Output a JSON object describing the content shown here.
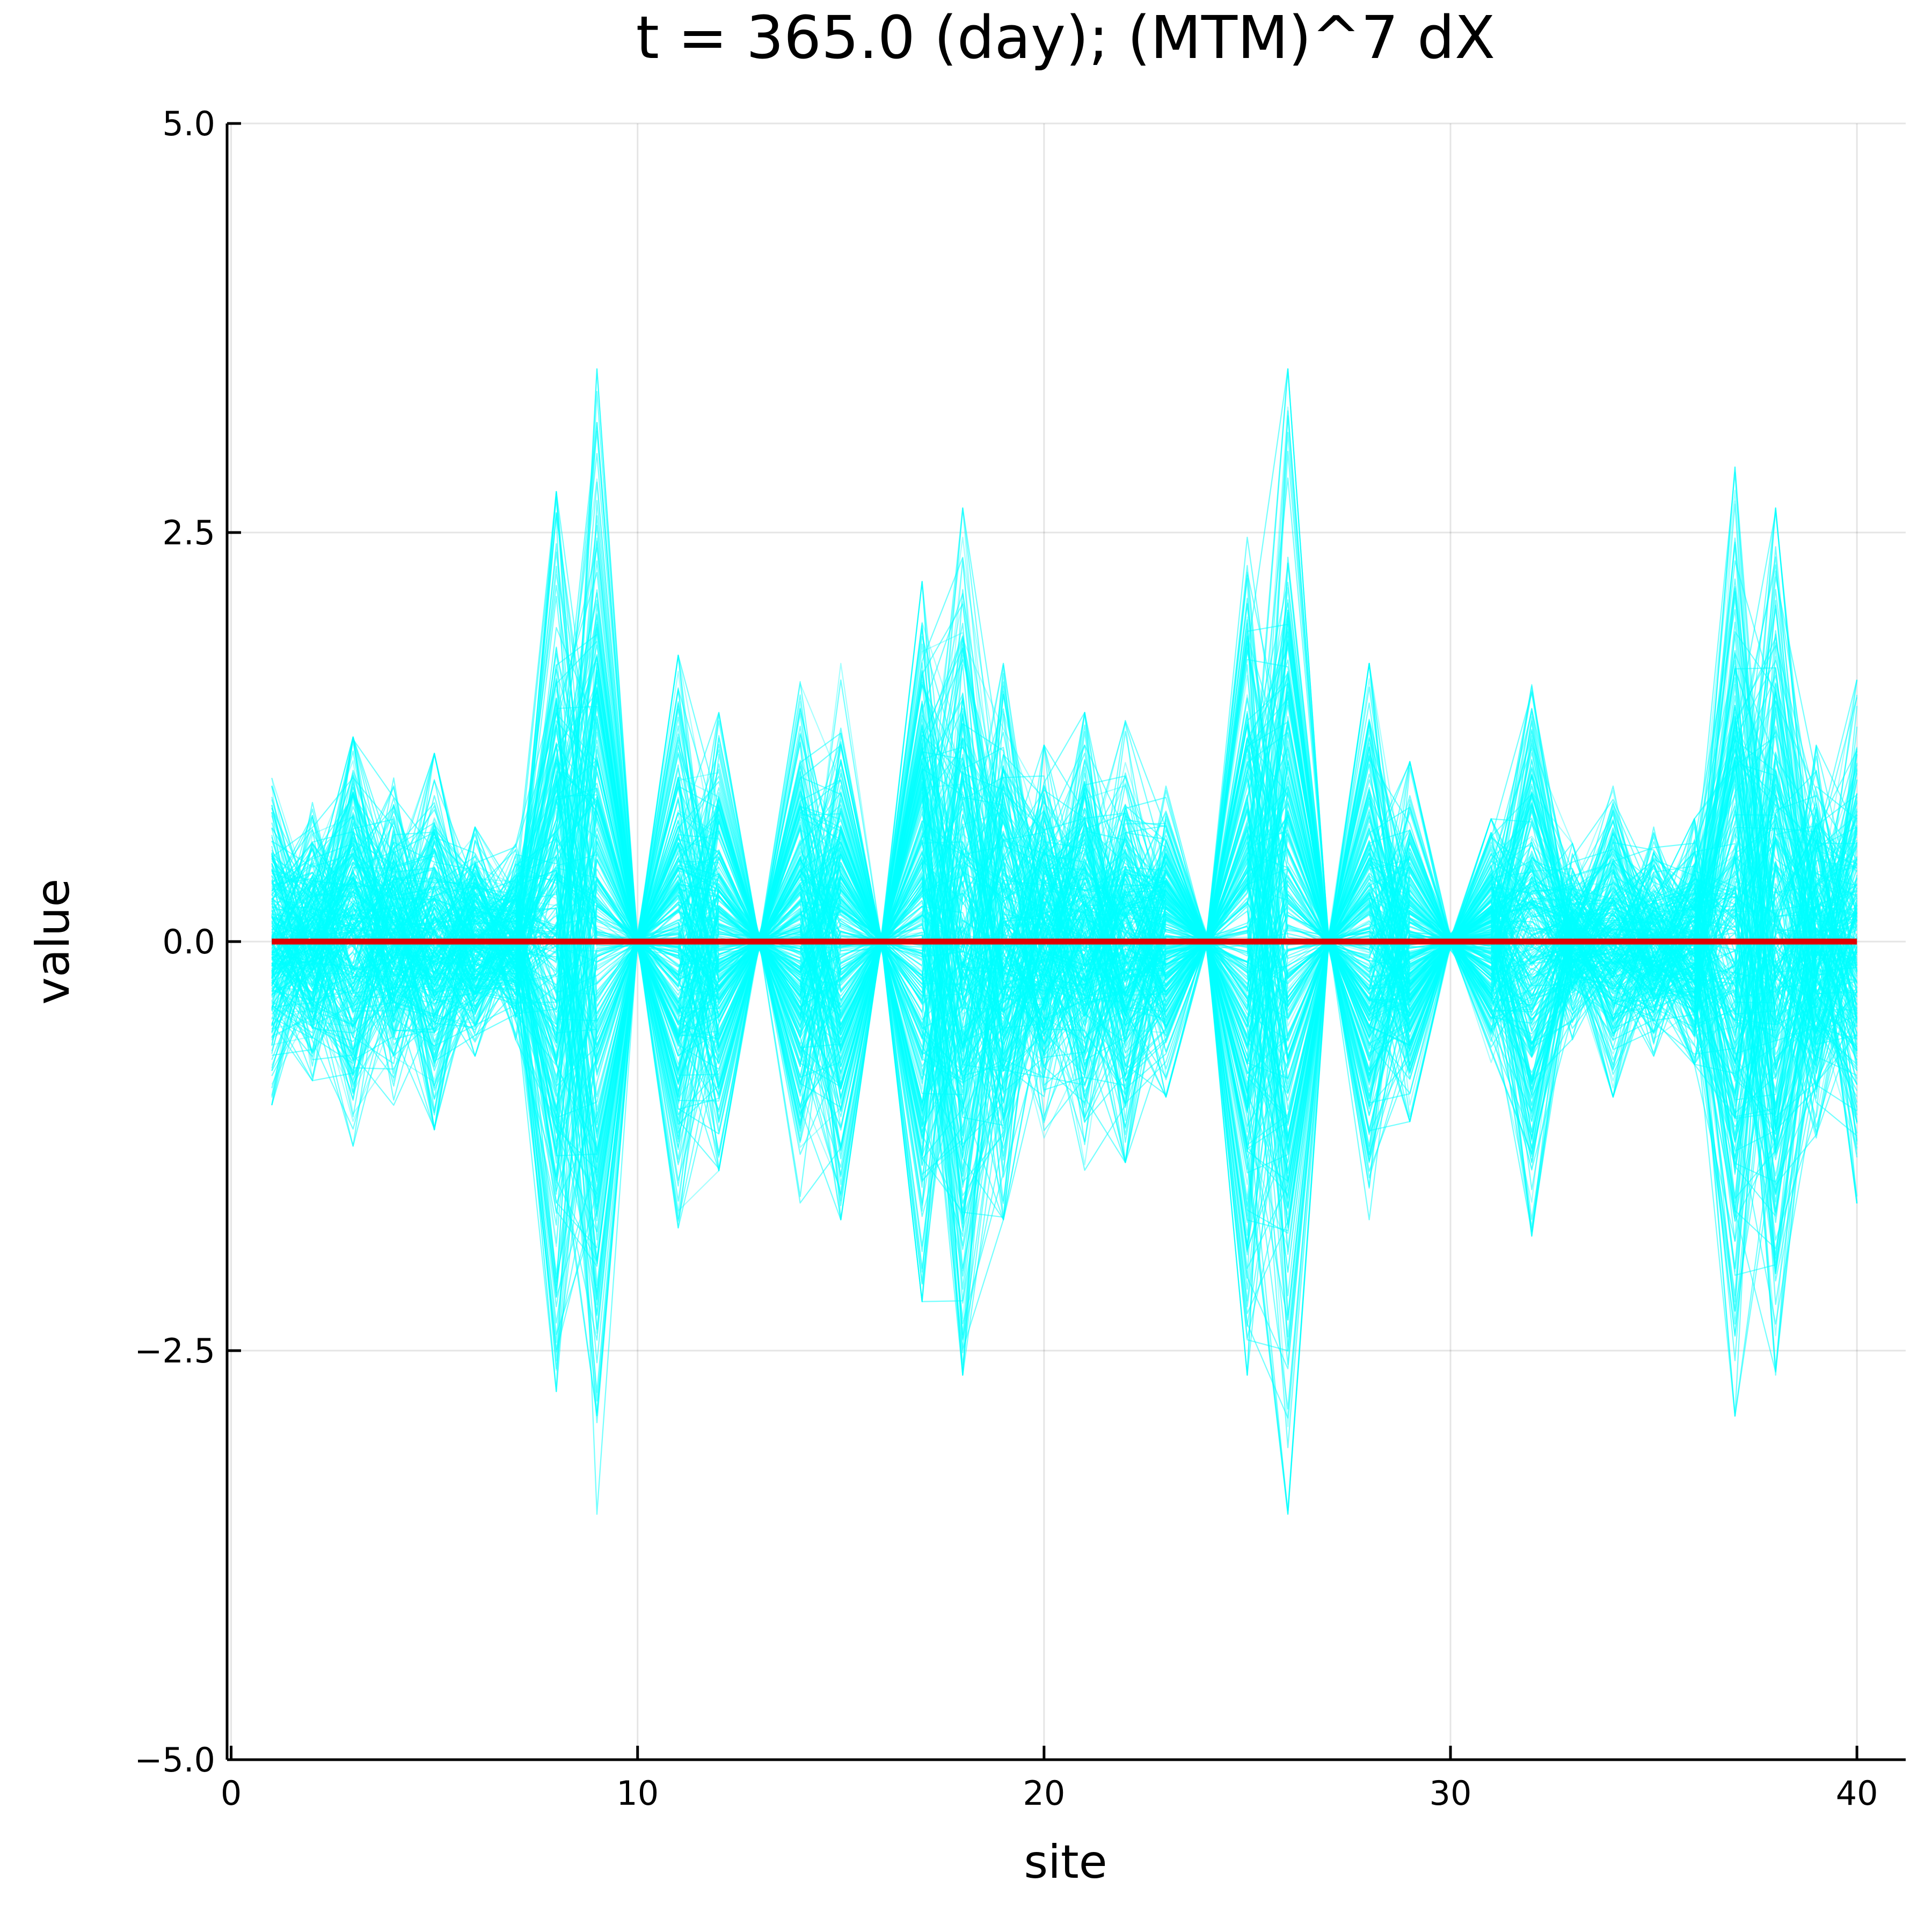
{
  "chart_data": {
    "type": "line",
    "title": "t = 365.0 (day); (MTM)^7 dX",
    "xlabel": "site",
    "ylabel": "value",
    "xlim": [
      -0.1,
      41.2
    ],
    "ylim": [
      -5.0,
      5.0
    ],
    "xticks": [
      0,
      10,
      20,
      30,
      40
    ],
    "xtick_labels": [
      "0",
      "10",
      "20",
      "30",
      "40"
    ],
    "yticks": [
      -5.0,
      -2.5,
      0.0,
      2.5,
      5.0
    ],
    "ytick_labels": [
      "−5.0",
      "−2.5",
      "0.0",
      "2.5",
      "5.0"
    ],
    "grid": true,
    "legend": "none",
    "colors": {
      "ensemble": "#00ffff",
      "mean": "#e00000",
      "axis": "#000000"
    },
    "x": [
      1,
      2,
      3,
      4,
      5,
      6,
      7,
      8,
      9,
      10,
      11,
      12,
      13,
      14,
      15,
      16,
      17,
      18,
      19,
      20,
      21,
      22,
      23,
      24,
      25,
      26,
      27,
      28,
      29,
      30,
      31,
      32,
      33,
      34,
      35,
      36,
      37,
      38,
      39,
      40
    ],
    "ensemble_spread": {
      "description": "approximate upper envelope (max |value|) of the ensemble members at each site",
      "upper": [
        0.85,
        0.8,
        1.25,
        0.9,
        1.15,
        0.7,
        0.6,
        2.75,
        3.5,
        0.05,
        1.75,
        1.4,
        0.05,
        1.6,
        1.7,
        0.05,
        2.1,
        2.4,
        1.7,
        1.2,
        1.4,
        1.35,
        0.95,
        0.05,
        2.6,
        3.5,
        0.05,
        1.65,
        1.05,
        0.05,
        0.7,
        1.8,
        0.6,
        0.45,
        0.7,
        0.75,
        2.75,
        2.6,
        1.2,
        1.55
      ],
      "lower": [
        -1.0,
        -0.85,
        -1.25,
        -1.0,
        -1.15,
        -0.65,
        -0.55,
        -2.7,
        -3.5,
        -0.05,
        -1.75,
        -1.35,
        -0.05,
        -1.6,
        -1.7,
        -0.05,
        -2.2,
        -2.65,
        -1.65,
        -1.2,
        -1.15,
        -1.2,
        -0.95,
        -0.05,
        -2.65,
        -3.5,
        -0.05,
        -1.7,
        -1.1,
        -0.05,
        -0.75,
        -1.05,
        -0.55,
        -0.95,
        -0.7,
        -0.75,
        -2.9,
        -2.65,
        -1.15,
        -1.6
      ],
      "members": 300
    },
    "series": [
      {
        "values": [
          0,
          0,
          0,
          0,
          0,
          0,
          0,
          0,
          0,
          0,
          0,
          0,
          0,
          0,
          0,
          0,
          0,
          0,
          0,
          0,
          0,
          0,
          0,
          0,
          0,
          0,
          0,
          0,
          0,
          0,
          0,
          0,
          0,
          0,
          0,
          0,
          0,
          0,
          0,
          0
        ]
      }
    ]
  }
}
